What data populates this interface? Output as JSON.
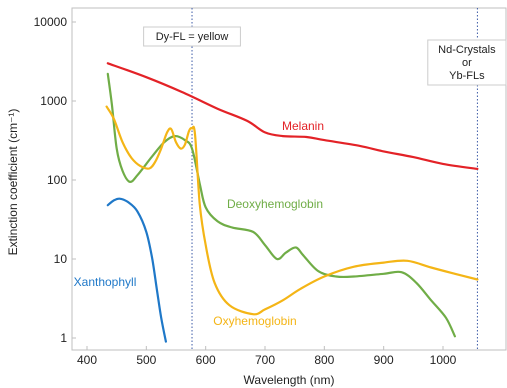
{
  "chart_data": {
    "type": "line",
    "title": "",
    "xlabel": "Wavelength (nm)",
    "ylabel": "Extinction coefficient (cm⁻¹)",
    "xlim": [
      375,
      1080
    ],
    "ylim": [
      0.75,
      12000
    ],
    "yscale": "log",
    "xticks": [
      400,
      500,
      600,
      700,
      800,
      900,
      1000
    ],
    "xtick_labels": [
      "400",
      "500",
      "600",
      "700",
      "800",
      "900",
      "1000"
    ],
    "yticks": [
      1,
      10,
      100,
      1000,
      10000
    ],
    "ytick_labels": [
      "1",
      "10",
      "100",
      "1000",
      "10000"
    ],
    "grid": false,
    "legend": "none",
    "annotations": [
      {
        "name": "dy-fl",
        "x": 577,
        "lines": [
          "Dy-FL = yellow"
        ]
      },
      {
        "name": "nd-yb",
        "x": 1058,
        "lines": [
          "Nd-Crystals",
          "or",
          "Yb-FLs"
        ]
      }
    ],
    "series": [
      {
        "name": "Melanin",
        "color": "#e32227",
        "label_at": [
          1000,
          100
        ],
        "points": [
          [
            435,
            3000
          ],
          [
            500,
            2000
          ],
          [
            560,
            1300
          ],
          [
            620,
            800
          ],
          [
            670,
            560
          ],
          [
            700,
            400
          ],
          [
            730,
            360
          ],
          [
            770,
            350
          ],
          [
            800,
            320
          ],
          [
            860,
            270
          ],
          [
            900,
            230
          ],
          [
            950,
            195
          ],
          [
            1000,
            160
          ],
          [
            1058,
            138
          ]
        ]
      },
      {
        "name": "Deoxyhemoglobin",
        "color": "#70ad47",
        "label_at": [
          850,
          1
        ],
        "points": [
          [
            435,
            2200
          ],
          [
            442,
            900
          ],
          [
            450,
            250
          ],
          [
            460,
            130
          ],
          [
            472,
            95
          ],
          [
            485,
            115
          ],
          [
            510,
            200
          ],
          [
            530,
            300
          ],
          [
            548,
            360
          ],
          [
            565,
            320
          ],
          [
            577,
            250
          ],
          [
            590,
            90
          ],
          [
            600,
            45
          ],
          [
            620,
            30
          ],
          [
            645,
            25
          ],
          [
            680,
            22
          ],
          [
            700,
            15
          ],
          [
            720,
            10
          ],
          [
            735,
            12
          ],
          [
            752,
            14
          ],
          [
            765,
            11
          ],
          [
            790,
            7
          ],
          [
            820,
            6
          ],
          [
            850,
            6
          ],
          [
            900,
            6.5
          ],
          [
            930,
            6.8
          ],
          [
            955,
            5
          ],
          [
            980,
            3
          ],
          [
            1005,
            1.8
          ],
          [
            1020,
            1.05
          ]
        ]
      },
      {
        "name": "Oxyhemoglobin",
        "color": "#f4b516",
        "label_at": [
          710,
          1
        ],
        "points": [
          [
            433,
            850
          ],
          [
            445,
            600
          ],
          [
            460,
            300
          ],
          [
            475,
            190
          ],
          [
            490,
            150
          ],
          [
            505,
            140
          ],
          [
            515,
            170
          ],
          [
            525,
            250
          ],
          [
            535,
            400
          ],
          [
            542,
            440
          ],
          [
            550,
            300
          ],
          [
            558,
            250
          ],
          [
            565,
            280
          ],
          [
            572,
            420
          ],
          [
            577,
            450
          ],
          [
            582,
            380
          ],
          [
            590,
            50
          ],
          [
            600,
            15
          ],
          [
            615,
            5
          ],
          [
            640,
            2.6
          ],
          [
            680,
            2.0
          ],
          [
            700,
            2.3
          ],
          [
            730,
            3.0
          ],
          [
            760,
            4.2
          ],
          [
            800,
            6
          ],
          [
            850,
            8
          ],
          [
            900,
            9
          ],
          [
            940,
            9.5
          ],
          [
            980,
            7.8
          ],
          [
            1020,
            6.5
          ],
          [
            1058,
            5.5
          ]
        ]
      },
      {
        "name": "Xanthophyll",
        "color": "#1f78c8",
        "label_at": [
          430,
          1
        ],
        "points": [
          [
            435,
            48
          ],
          [
            445,
            55
          ],
          [
            455,
            58
          ],
          [
            470,
            52
          ],
          [
            485,
            40
          ],
          [
            500,
            22
          ],
          [
            510,
            10
          ],
          [
            518,
            4
          ],
          [
            525,
            1.8
          ],
          [
            533,
            0.9
          ]
        ]
      }
    ]
  }
}
